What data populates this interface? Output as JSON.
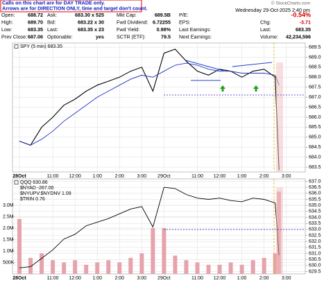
{
  "header": {
    "note_lines": [
      "Calls on this chart are for DAY TRADE only.",
      "Arrows are for DIRECTION ONLY, time and target don't count."
    ],
    "copyright": "© StockCharts.com",
    "timestamp": "Wednesday  29-Oct-2025  2:40 pm",
    "rows": [
      [
        {
          "label": "Open:",
          "value": "688.72"
        },
        {
          "label": "Ask:",
          "value": "683.30 x 525"
        },
        {
          "label": "Mkt Cap:",
          "value": "689.5B"
        },
        {
          "label": "P/E:"
        },
        {
          "value": "-0.54%"
        }
      ],
      [
        {
          "label": "High:",
          "value": "689.70"
        },
        {
          "label": "Bid:",
          "value": "683.22 x 30"
        },
        {
          "label": "Fwd Dividend:",
          "value": "6.72255"
        },
        {
          "label": "EPS:"
        },
        {
          "label": "Chg:",
          "value": "-3.71"
        }
      ],
      [
        {
          "label": "Low:",
          "value": "683.35"
        },
        {
          "label": "Last:",
          "value": "683.35 x 23"
        },
        {
          "label": "Fwd Yield:",
          "value": "0.98%"
        },
        {
          "label": "Last Earnings:"
        },
        {
          "label": "Last:",
          "value": "683.35"
        }
      ],
      [
        {
          "label": "Prev Close:",
          "value": "687.06"
        },
        {
          "label": "Optionable:",
          "value": "yes"
        },
        {
          "label": "SCTR (ETF):",
          "value": "79.5"
        },
        {
          "label": "Next Earnings:"
        },
        {
          "label": "Volume:",
          "value": "42,234,596"
        }
      ]
    ]
  },
  "chart_data": [
    {
      "type": "line",
      "x": [
        0,
        0.5,
        1,
        1.5,
        2,
        2.5,
        3,
        3.5,
        4,
        4.5,
        5,
        5.5,
        6,
        6.5,
        7,
        7.5,
        8,
        8.5,
        9,
        9.5,
        10,
        10.5,
        11,
        11.5,
        11.67
      ],
      "xlim": [
        0,
        12.85
      ],
      "xticks": [
        {
          "value": 0,
          "label": "28Oct"
        },
        {
          "value": 1.5,
          "label": "11:00"
        },
        {
          "value": 2.5,
          "label": "12:00"
        },
        {
          "value": 3.5,
          "label": "1:00"
        },
        {
          "value": 4.5,
          "label": "2:00"
        },
        {
          "value": 5.5,
          "label": "3:00"
        },
        {
          "value": 6.5,
          "label": "29Oct"
        },
        {
          "value": 8,
          "label": "11:00"
        },
        {
          "value": 9,
          "label": "12:00"
        },
        {
          "value": 10,
          "label": "1:00"
        },
        {
          "value": 11,
          "label": "2:00"
        },
        {
          "value": 12,
          "label": "3:00"
        }
      ],
      "ylim": [
        683.26,
        689.71
      ],
      "yticks": [
        683.5,
        {
          "value": 684,
          "label": "684.0"
        },
        684.5,
        {
          "value": 685,
          "label": "685.0"
        },
        685.5,
        {
          "value": 686,
          "label": "686.0"
        },
        686.5,
        {
          "value": 687,
          "label": "687.0"
        },
        687.5,
        {
          "value": 688,
          "label": "688.0"
        },
        688.5,
        {
          "value": 689,
          "label": "689.0"
        },
        689.5
      ],
      "grid": true,
      "series": [
        {
          "name": "SPY (5 min) 683.35",
          "color": "#000000",
          "values": [
            684.8,
            684.6,
            685.5,
            686.0,
            686.6,
            686.9,
            687.3,
            687.6,
            687.8,
            688.0,
            688.3,
            688.5,
            687.3,
            689.2,
            689.4,
            688.8,
            688.3,
            688.1,
            688.4,
            688.3,
            688.0,
            688.3,
            688.4,
            688.0,
            683.35
          ]
        },
        {
          "color": "#2030c0",
          "values": [
            684.8,
            684.6,
            684.9,
            685.3,
            685.8,
            686.2,
            686.6,
            687.0,
            687.3,
            687.6,
            687.9,
            688.1,
            688.0,
            688.3,
            688.6,
            688.7,
            688.6,
            688.4,
            688.3,
            688.3,
            688.2,
            688.2,
            688.2,
            688.1,
            687.6
          ]
        }
      ]
    },
    {
      "type": "line",
      "x": [
        0,
        0.5,
        1,
        1.5,
        2,
        2.5,
        3,
        3.5,
        4,
        4.5,
        5,
        5.5,
        6,
        6.5,
        7,
        7.5,
        8,
        8.5,
        9,
        9.5,
        10,
        10.5,
        11,
        11.5,
        11.67
      ],
      "xlim": [
        0,
        12.85
      ],
      "xticks": [
        {
          "value": 0,
          "label": "28Oct"
        },
        {
          "value": 1.5,
          "label": "11:00"
        },
        {
          "value": 2.5,
          "label": "12:00"
        },
        {
          "value": 3.5,
          "label": "1:00"
        },
        {
          "value": 4.5,
          "label": "2:00"
        },
        {
          "value": 5.5,
          "label": "3:00"
        },
        {
          "value": 6.5,
          "label": "29Oct"
        },
        {
          "value": 8,
          "label": "11:00"
        },
        {
          "value": 9,
          "label": "12:00"
        },
        {
          "value": 10,
          "label": "1:00"
        },
        {
          "value": 11,
          "label": "2:00"
        },
        {
          "value": 12,
          "label": "3:00"
        }
      ],
      "ylim": [
        0,
        4150000
      ],
      "yticks": [
        {
          "value": 500000,
          "label": "500K"
        },
        {
          "value": 1000000,
          "label": "1.0M"
        },
        {
          "value": 1500000,
          "label": "1.5M"
        },
        {
          "value": 2000000,
          "label": "2.0M"
        },
        {
          "value": 2500000,
          "label": "2.5M"
        },
        {
          "value": 3000000,
          "label": "3.0M"
        }
      ],
      "y2lim": [
        629.3,
        637.2
      ],
      "y2ticks": [
        629.5,
        {
          "value": 630,
          "label": "630.0"
        },
        630.5,
        {
          "value": 631,
          "label": "631.0"
        },
        631.5,
        {
          "value": 632,
          "label": "632.0"
        },
        632.5,
        {
          "value": 633,
          "label": "633.0"
        },
        633.5,
        {
          "value": 634,
          "label": "634.0"
        },
        634.5,
        {
          "value": 635,
          "label": "635.0"
        },
        635.5,
        {
          "value": 636,
          "label": "636.0"
        },
        636.5,
        {
          "value": 637,
          "label": "637.0"
        }
      ],
      "grid": true,
      "annotations": [
        "$NYAD -267.00",
        "$NYUPV:$NYDNV 1.09",
        "$TRIN 0.76"
      ],
      "series": [
        {
          "type": "bar",
          "color": "#e6a3ab",
          "values": [
            2400000,
            700000,
            900000,
            600000,
            500000,
            600000,
            400000,
            500000,
            600000,
            500000,
            700000,
            900000,
            2000000,
            2000000,
            800000,
            600000,
            500000,
            400000,
            400000,
            500000,
            400000,
            600000,
            700000,
            900000,
            3600000
          ]
        },
        {
          "name": "QQQ 630.86",
          "axis": "y2",
          "color": "#000000",
          "values": [
            629.8,
            629.9,
            630.6,
            631.3,
            632.2,
            632.6,
            633.3,
            633.6,
            633.9,
            634.3,
            634.7,
            634.9,
            633.2,
            636.5,
            636.4,
            635.9,
            635.6,
            635.5,
            635.6,
            635.4,
            635.3,
            635.6,
            635.5,
            635.2,
            630.86
          ]
        }
      ]
    }
  ]
}
